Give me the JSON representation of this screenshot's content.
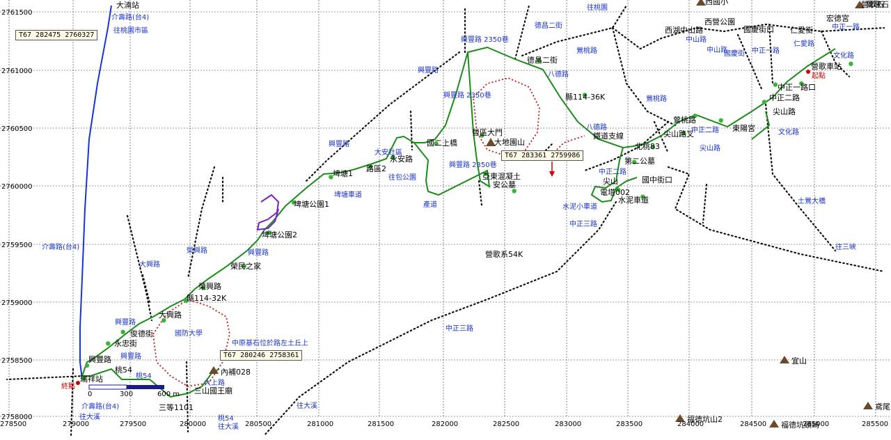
{
  "colors": {
    "route": "#008000",
    "bus_route": "#1533d6",
    "purple": "#7a1fbf",
    "red_dotted": "#cc0000",
    "label": "#1a33cc",
    "node": "#3bb33b",
    "grid": "#333333"
  },
  "axes": {
    "x_ticks": [
      "278500",
      "279000",
      "279500",
      "280000",
      "280500",
      "281000",
      "281500",
      "282000",
      "282500",
      "283000",
      "283500",
      "284000",
      "284500",
      "285000",
      "285500"
    ],
    "y_ticks": [
      "2761500",
      "2761000",
      "2760500",
      "2760000",
      "2759500",
      "2759000",
      "2758500",
      "2758000"
    ]
  },
  "coords": [
    {
      "text": "T67  282475  2760327"
    },
    {
      "text": "T67  283361  2759986"
    },
    {
      "text": "T67  280246  2758361"
    }
  ],
  "scale_bar": {
    "labels": [
      "0",
      "300",
      "600 m"
    ]
  },
  "places": [
    "大湳站",
    "西國小",
    "西湖中山路",
    "西營公園",
    "國慶街口",
    "仁愛街",
    "宏德宮",
    "營歌石",
    "營歌車站",
    "中正一路口",
    "中正二路",
    "尖山路",
    "東陽宮",
    "尖山路叉",
    "鶯桃路",
    "德昌二街",
    "縣114-36K",
    "鐵道支線",
    "北桃83",
    "第二公墓",
    "國中街口",
    "尖山",
    "電塔002",
    "水泥車道",
    "營區大門",
    "大地園山",
    "亞東混凝土",
    "安公墓",
    "營歌系54K",
    "國二上橋",
    "永安路",
    "路區2",
    "埤塘1",
    "埤塘公園1",
    "埤塘公園2",
    "榮民之家",
    "榮興路",
    "縣114-32K",
    "大興路",
    "俊德街",
    "永忠街",
    "興豐路",
    "瑞祥站",
    "桃54",
    "三山國王廟",
    "三等1101",
    "內補028",
    "宜山",
    "福德坑山2",
    "福德坑頭崎",
    "鳶尾",
    "鶯歌石"
  ],
  "blue_labels": [
    "介壽路(台4)",
    "往桃園市區",
    "介壽路(台4)",
    "興豐路",
    "大興路",
    "榮興路",
    "興豐路",
    "埤塘車道",
    "興豐路",
    "往包公園",
    "產道",
    "興豐路",
    "興豐路 2350巷",
    "興豐路 2350巷",
    "興豐路 2350巷",
    "德昌二街",
    "八德路",
    "鶯桃路",
    "鶯桃路",
    "八德路",
    "中正二路",
    "水泥小車道",
    "中正三路",
    "中正三路",
    "中正二路",
    "文化路",
    "尖山路",
    "土鶯大橋",
    "往三峽",
    "中山路",
    "國慶街",
    "中正一路",
    "仁愛路",
    "文化路",
    "中正一路",
    "大安社區",
    "往桃園",
    "國防大學",
    "中原基石位於路左土丘上",
    "往大溪",
    "往大溪",
    "往大溪",
    "桃54",
    "桃54",
    "大上路",
    "介壽路(台4)",
    "興豐路",
    "中山路"
  ],
  "red_labels": [
    "起點",
    "終點"
  ],
  "route_nodes": [
    {
      "name": "瑞祥站",
      "x": 279100,
      "y": 2758330
    },
    {
      "name": "興豐路",
      "x": 279130,
      "y": 2758440
    },
    {
      "name": "永忠街",
      "x": 279300,
      "y": 2758630
    },
    {
      "name": "俊德街",
      "x": 279420,
      "y": 2758730
    },
    {
      "name": "大興路",
      "x": 279750,
      "y": 2758830
    },
    {
      "name": "縣114-32K",
      "x": 279930,
      "y": 2759000
    },
    {
      "name": "榮興路",
      "x": 280070,
      "y": 2759110
    },
    {
      "name": "榮民之家",
      "x": 280400,
      "y": 2759300
    },
    {
      "name": "埤塘公園2",
      "x": 280600,
      "y": 2759590
    },
    {
      "name": "埤塘公園1",
      "x": 280800,
      "y": 2759850
    },
    {
      "name": "埤塘1",
      "x": 281100,
      "y": 2760070
    },
    {
      "name": "路區2",
      "x": 281420,
      "y": 2760160
    },
    {
      "name": "永安路",
      "x": 281600,
      "y": 2760240
    },
    {
      "name": "國二上橋",
      "x": 281950,
      "y": 2760360
    },
    {
      "name": "營區大門",
      "x": 282320,
      "y": 2760430
    },
    {
      "name": "亞東混凝土",
      "x": 282350,
      "y": 2760100
    },
    {
      "name": "安公墓",
      "x": 282580,
      "y": 2759950
    },
    {
      "name": "德昌二街",
      "x": 282780,
      "y": 2761080
    },
    {
      "name": "縣114-36K",
      "x": 283150,
      "y": 2760780
    },
    {
      "name": "北桃83",
      "x": 283700,
      "y": 2760330
    },
    {
      "name": "第二公墓",
      "x": 283550,
      "y": 2760200
    },
    {
      "name": "尖山",
      "x": 283420,
      "y": 2759960
    },
    {
      "name": "電塔002",
      "x": 283620,
      "y": 2759900
    },
    {
      "name": "尖山路叉",
      "x": 283950,
      "y": 2760450
    },
    {
      "name": "鶯桃路",
      "x": 284040,
      "y": 2760600
    },
    {
      "name": "東陽宮",
      "x": 284250,
      "y": 2760560
    },
    {
      "name": "尖山路",
      "x": 284600,
      "y": 2760720
    },
    {
      "name": "中正二路",
      "x": 284690,
      "y": 2760870
    },
    {
      "name": "中正一路口",
      "x": 284900,
      "y": 2760880
    },
    {
      "name": "營歌車站",
      "x": 285300,
      "y": 2761050
    }
  ]
}
